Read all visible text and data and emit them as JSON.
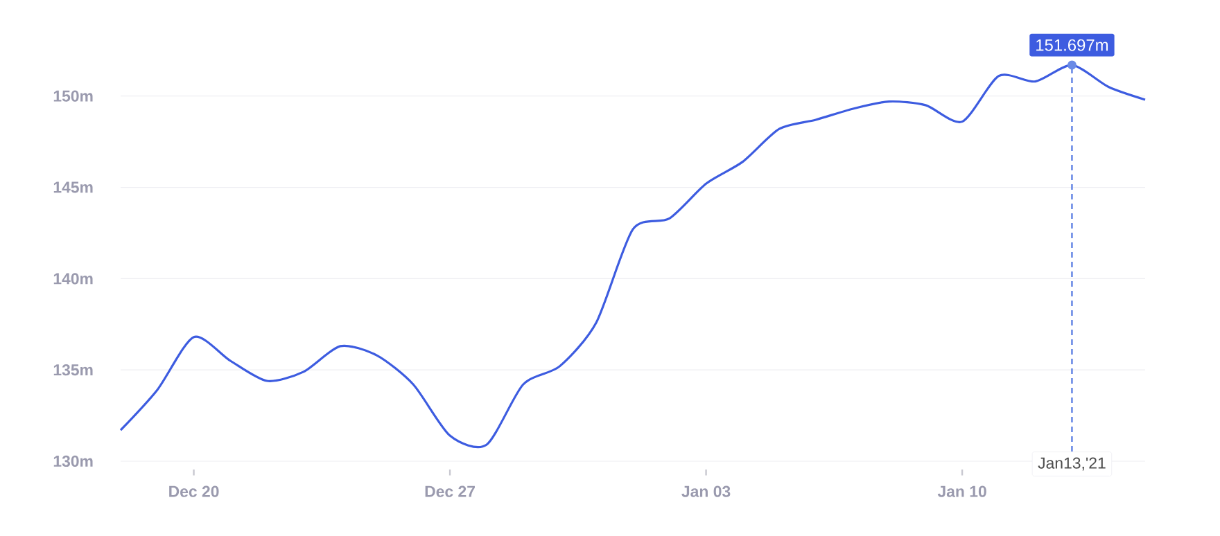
{
  "chart_data": {
    "type": "line",
    "x": [
      "2020-12-18",
      "2020-12-19",
      "2020-12-20",
      "2020-12-21",
      "2020-12-22",
      "2020-12-23",
      "2020-12-24",
      "2020-12-25",
      "2020-12-26",
      "2020-12-27",
      "2020-12-28",
      "2020-12-29",
      "2020-12-30",
      "2020-12-31",
      "2021-01-01",
      "2021-01-02",
      "2021-01-03",
      "2021-01-04",
      "2021-01-05",
      "2021-01-06",
      "2021-01-07",
      "2021-01-08",
      "2021-01-09",
      "2021-01-10",
      "2021-01-11",
      "2021-01-12",
      "2021-01-13",
      "2021-01-14",
      "2021-01-15"
    ],
    "series": [
      {
        "color": "#3d5ce0",
        "values": [
          131.7,
          133.9,
          136.8,
          135.5,
          134.4,
          134.9,
          136.3,
          135.8,
          134.2,
          131.4,
          130.9,
          134.2,
          135.2,
          137.6,
          142.7,
          143.3,
          145.2,
          146.4,
          148.2,
          148.7,
          149.3,
          149.7,
          149.5,
          148.6,
          151.1,
          150.8,
          151.697,
          150.5,
          149.8
        ]
      }
    ],
    "xlim": [
      "2020-12-18",
      "2021-01-15"
    ],
    "xticks": [
      {
        "value": "2020-12-20",
        "label": "Dec 20"
      },
      {
        "value": "2020-12-27",
        "label": "Dec 27"
      },
      {
        "value": "2021-01-03",
        "label": "Jan 03"
      },
      {
        "value": "2021-01-10",
        "label": "Jan 10"
      }
    ],
    "ylim": [
      130,
      152
    ],
    "yticks": [
      {
        "value": 130,
        "label": "130m"
      },
      {
        "value": 135,
        "label": "135m"
      },
      {
        "value": 140,
        "label": "140m"
      },
      {
        "value": 145,
        "label": "145m"
      },
      {
        "value": 150,
        "label": "150m"
      }
    ],
    "grid": "y",
    "marker": "none",
    "line_style": "solid",
    "ref_lines": [
      {
        "axis": "x",
        "value": "2021-01-13",
        "label": "Jan13,'21",
        "color": "#6a8ae6",
        "line_style": "dotted"
      }
    ],
    "annotations": [
      {
        "text": "151.697m",
        "x": "2021-01-13",
        "y": 151.697
      }
    ]
  }
}
